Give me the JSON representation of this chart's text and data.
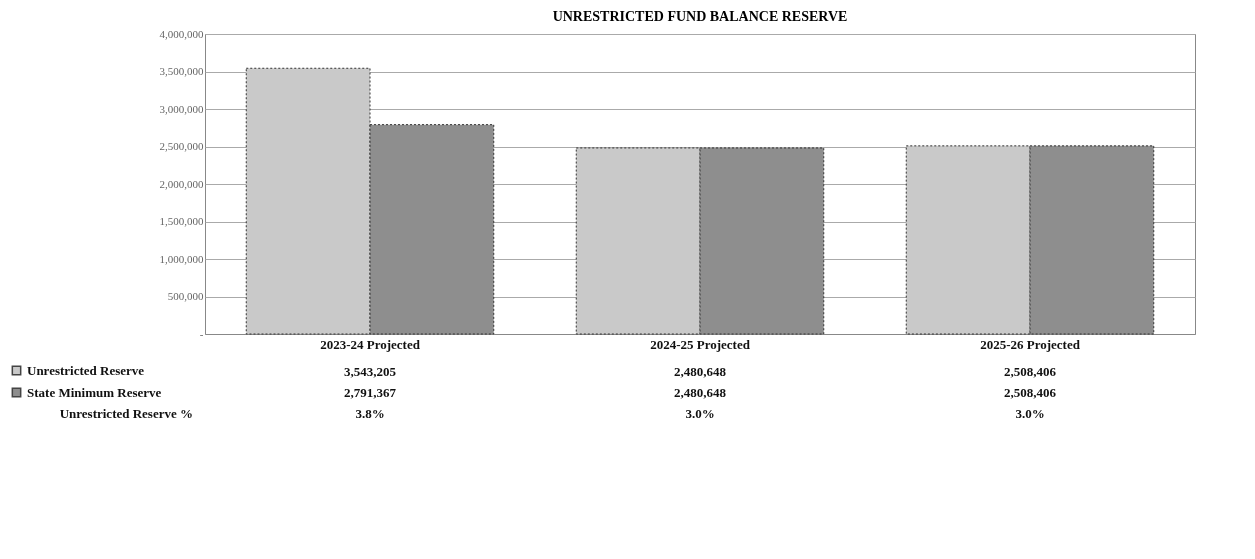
{
  "chart_data": {
    "type": "bar",
    "title": "UNRESTRICTED FUND BALANCE RESERVE",
    "categories": [
      "2023-24 Projected",
      "2024-25 Projected",
      "2025-26 Projected"
    ],
    "series": [
      {
        "name": "Unrestricted Reserve",
        "color": "#c9c9c9",
        "values": [
          3543205,
          2480648,
          2508406
        ],
        "value_labels": [
          "3,543,205",
          "2,480,648",
          "2,508,406"
        ]
      },
      {
        "name": "State Minimum Reserve",
        "color": "#8e8e8e",
        "values": [
          2791367,
          2480648,
          2508406
        ],
        "value_labels": [
          "2,791,367",
          "2,480,648",
          "2,508,406"
        ]
      }
    ],
    "ylim": [
      0,
      4000000
    ],
    "yticks": [
      {
        "value": 0,
        "label": "-"
      },
      {
        "value": 500000,
        "label": "500,000"
      },
      {
        "value": 1000000,
        "label": "1,000,000"
      },
      {
        "value": 1500000,
        "label": "1,500,000"
      },
      {
        "value": 2000000,
        "label": "2,000,000"
      },
      {
        "value": 2500000,
        "label": "2,500,000"
      },
      {
        "value": 3000000,
        "label": "3,000,000"
      },
      {
        "value": 3500000,
        "label": "3,500,000"
      },
      {
        "value": 4000000,
        "label": "4,000,000"
      }
    ],
    "grid": "y",
    "legend": "bottom left",
    "annotations": [
      "Unrestricted Reserve %",
      "3.8%",
      "3.0%",
      "3.0%"
    ]
  }
}
